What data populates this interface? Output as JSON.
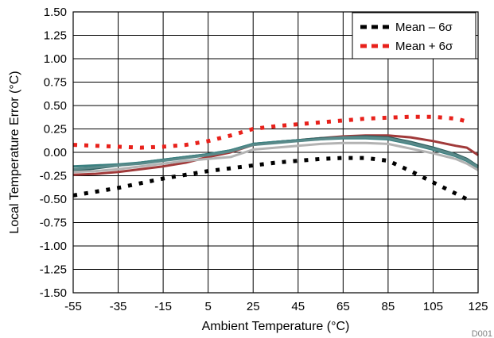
{
  "chart_data": {
    "type": "line",
    "xlabel": "Ambient Temperature (°C)",
    "ylabel": "Local Temperature Error (°C)",
    "xlim": [
      -55,
      125
    ],
    "ylim": [
      -1.5,
      1.5
    ],
    "xticks": [
      -55,
      -35,
      -15,
      5,
      25,
      45,
      65,
      85,
      105,
      125
    ],
    "yticks": [
      -1.5,
      -1.25,
      -1.0,
      -0.75,
      -0.5,
      -0.25,
      0.0,
      0.25,
      0.5,
      0.75,
      1.0,
      1.25,
      1.5
    ],
    "ytick_labels": [
      "-1.50",
      "-1.25",
      "-1.00",
      "-0.75",
      "-0.50",
      "-0.25",
      "0.00",
      "0.25",
      "0.50",
      "0.75",
      "1.00",
      "1.25",
      "1.50"
    ],
    "grid": true,
    "legend_position": "top-right",
    "watermark": "D001",
    "series": [
      {
        "name": "Mean – 6σ",
        "color": "#000000",
        "style": "dotted",
        "x": [
          -55,
          -45,
          -35,
          -25,
          -15,
          -5,
          5,
          15,
          25,
          35,
          45,
          55,
          65,
          75,
          85,
          95,
          105,
          115,
          120
        ],
        "y": [
          -0.46,
          -0.42,
          -0.38,
          -0.33,
          -0.28,
          -0.24,
          -0.2,
          -0.17,
          -0.14,
          -0.11,
          -0.09,
          -0.07,
          -0.06,
          -0.06,
          -0.09,
          -0.2,
          -0.32,
          -0.44,
          -0.5
        ]
      },
      {
        "name": "Mean + 6σ",
        "color": "#e8211b",
        "style": "dotted",
        "x": [
          -55,
          -45,
          -35,
          -25,
          -15,
          -5,
          5,
          15,
          25,
          35,
          45,
          55,
          65,
          75,
          85,
          95,
          105,
          115,
          120
        ],
        "y": [
          0.08,
          0.07,
          0.06,
          0.05,
          0.06,
          0.08,
          0.12,
          0.18,
          0.25,
          0.28,
          0.3,
          0.32,
          0.34,
          0.36,
          0.37,
          0.38,
          0.38,
          0.36,
          0.33
        ]
      },
      {
        "color": "#a13a3a",
        "style": "solid",
        "x": [
          -55,
          -45,
          -35,
          -25,
          -15,
          -5,
          5,
          15,
          25,
          35,
          45,
          55,
          65,
          75,
          85,
          95,
          105,
          115,
          120,
          125
        ],
        "y": [
          -0.24,
          -0.23,
          -0.21,
          -0.18,
          -0.15,
          -0.11,
          -0.05,
          0.0,
          0.08,
          0.11,
          0.13,
          0.15,
          0.17,
          0.18,
          0.18,
          0.16,
          0.12,
          0.07,
          0.05,
          -0.03
        ]
      },
      {
        "color": "#2e5e5e",
        "style": "solid",
        "x": [
          -55,
          -45,
          -35,
          -25,
          -15,
          -5,
          5,
          15,
          25,
          35,
          45,
          55,
          65,
          75,
          85,
          95,
          105,
          115,
          120,
          125
        ],
        "y": [
          -0.2,
          -0.17,
          -0.14,
          -0.11,
          -0.08,
          -0.05,
          -0.02,
          0.02,
          0.09,
          0.11,
          0.13,
          0.15,
          0.16,
          0.17,
          0.16,
          0.11,
          0.05,
          -0.02,
          -0.07,
          -0.15
        ]
      },
      {
        "color": "#3a8080",
        "style": "solid",
        "x": [
          -55,
          -45,
          -35,
          -25,
          -15,
          -5,
          5,
          15,
          25,
          35,
          45,
          55,
          65,
          75,
          85,
          95,
          105,
          115,
          120,
          125
        ],
        "y": [
          -0.15,
          -0.14,
          -0.13,
          -0.11,
          -0.08,
          -0.05,
          -0.02,
          0.02,
          0.09,
          0.11,
          0.13,
          0.14,
          0.15,
          0.15,
          0.14,
          0.09,
          0.03,
          -0.04,
          -0.09,
          -0.17
        ]
      },
      {
        "color": "#5a8a8a",
        "style": "solid",
        "x": [
          -55,
          -45,
          -35,
          -25,
          -15,
          -5,
          5,
          15,
          25,
          35,
          45,
          55,
          65,
          75,
          85,
          95,
          105,
          115,
          120,
          125
        ],
        "y": [
          -0.18,
          -0.16,
          -0.14,
          -0.12,
          -0.09,
          -0.06,
          -0.03,
          0.01,
          0.08,
          0.1,
          0.12,
          0.14,
          0.16,
          0.16,
          0.15,
          0.1,
          0.04,
          -0.03,
          -0.08,
          -0.16
        ]
      },
      {
        "color": "#b3b3b3",
        "style": "solid",
        "x": [
          -55,
          -45,
          -35,
          -25,
          -15,
          -5,
          5,
          15,
          25,
          35,
          45,
          55,
          65,
          75,
          85,
          95,
          105,
          115,
          120,
          125
        ],
        "y": [
          -0.21,
          -0.2,
          -0.18,
          -0.15,
          -0.12,
          -0.09,
          -0.07,
          -0.05,
          0.03,
          0.05,
          0.07,
          0.09,
          0.1,
          0.1,
          0.09,
          0.04,
          -0.01,
          -0.07,
          -0.12,
          -0.19
        ]
      }
    ]
  }
}
